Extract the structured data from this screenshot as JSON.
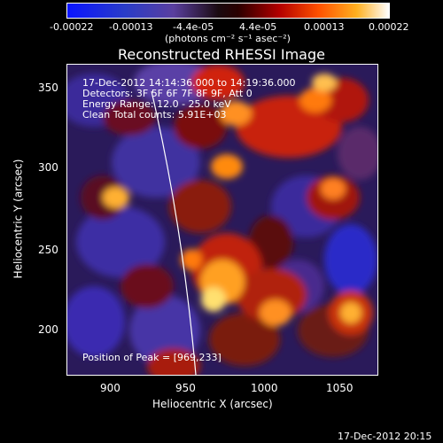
{
  "colorbar": {
    "tick_labels": [
      "-0.00022",
      "-0.00013",
      "-4.4e-05",
      "4.4e-05",
      "0.00013",
      "0.00022"
    ],
    "units_label": "(photons cm⁻² s⁻¹ asec⁻²)"
  },
  "title": "Reconstructed RHESSI Image",
  "info": {
    "time_range": "17-Dec-2012 14:14:36.000 to 14:19:36.000",
    "detectors": "Detectors: 3F 5F 6F 7F 8F 9F, Att 0",
    "energy_range": "Energy Range: 12.0 - 25.0 keV",
    "method_counts": "Clean    Total counts: 5.91E+03"
  },
  "peak_text": "Position of Peak = [969,233]",
  "x_axis": {
    "label": "Heliocentric X (arcsec)",
    "ticks": [
      "900",
      "950",
      "1000",
      "1050"
    ],
    "range": [
      875,
      1075
    ]
  },
  "y_axis": {
    "label": "Heliocentric Y (arcsec)",
    "ticks": [
      "200",
      "250",
      "300",
      "350"
    ],
    "range": [
      170,
      370
    ]
  },
  "timestamp": "17-Dec-2012 20:15",
  "colors": {
    "background": "#000000",
    "limb": "#ffffff"
  }
}
